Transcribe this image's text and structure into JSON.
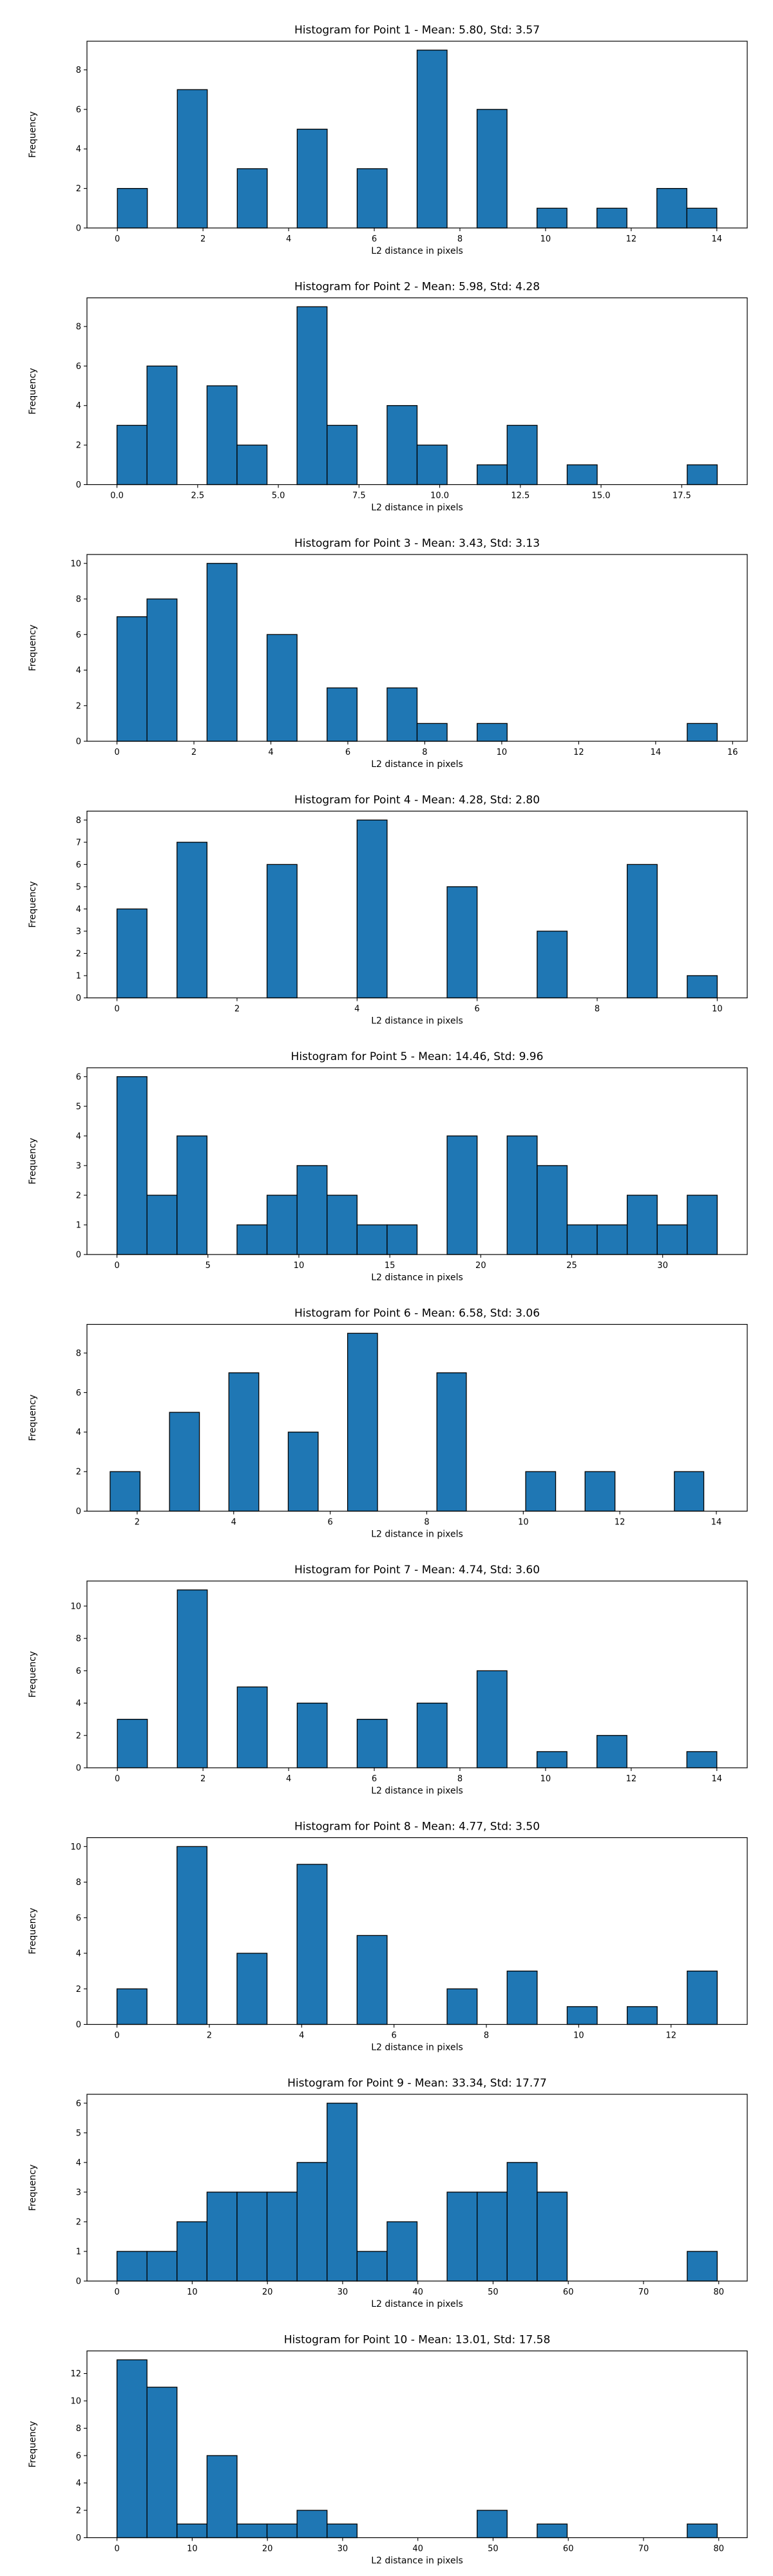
{
  "colors": {
    "bar_fill": "#1f77b4",
    "bar_edge": "#000000",
    "background": "#ffffff"
  },
  "chart_data": [
    {
      "type": "bar",
      "title": "Histogram for Point 1 - Mean: 5.80, Std: 3.57",
      "xlabel": "L2 distance in pixels",
      "ylabel": "Frequency",
      "grid": false,
      "xlim": [
        -0.71,
        14.71
      ],
      "ylim": [
        0,
        9.45
      ],
      "xticks": [
        0,
        2,
        4,
        6,
        8,
        10,
        12,
        14
      ],
      "xtick_labels": [
        "0",
        "2",
        "4",
        "6",
        "8",
        "10",
        "12",
        "14"
      ],
      "yticks": [
        0,
        2,
        4,
        6,
        8
      ],
      "ytick_labels": [
        "0",
        "2",
        "4",
        "6",
        "8"
      ],
      "bin_edges": [
        0,
        0.7,
        1.4,
        2.1,
        2.8,
        3.5,
        4.2,
        4.9,
        5.6,
        6.3,
        7.0,
        7.7,
        8.4,
        9.1,
        9.8,
        10.5,
        11.2,
        11.9,
        12.6,
        13.3,
        14.0
      ],
      "values": [
        2,
        0,
        7,
        0,
        3,
        0,
        5,
        0,
        3,
        0,
        9,
        0,
        6,
        0,
        1,
        0,
        1,
        0,
        2,
        1
      ]
    },
    {
      "type": "bar",
      "title": "Histogram for Point 2 - Mean: 5.98, Std: 4.28",
      "xlabel": "L2 distance in pixels",
      "ylabel": "Frequency",
      "grid": false,
      "xlim": [
        -0.93,
        19.53
      ],
      "ylim": [
        0,
        9.45
      ],
      "xticks": [
        0.0,
        2.5,
        5.0,
        7.5,
        10.0,
        12.5,
        15.0,
        17.5
      ],
      "xtick_labels": [
        "0.0",
        "2.5",
        "5.0",
        "7.5",
        "10.0",
        "12.5",
        "15.0",
        "17.5"
      ],
      "yticks": [
        0,
        2,
        4,
        6,
        8
      ],
      "ytick_labels": [
        "0",
        "2",
        "4",
        "6",
        "8"
      ],
      "bin_edges": [
        0,
        0.93,
        1.86,
        2.79,
        3.72,
        4.65,
        5.58,
        6.51,
        7.44,
        8.37,
        9.3,
        10.23,
        11.16,
        12.09,
        13.02,
        13.95,
        14.88,
        15.81,
        16.74,
        17.67,
        18.6
      ],
      "values": [
        3,
        6,
        0,
        5,
        2,
        0,
        9,
        3,
        0,
        4,
        2,
        0,
        1,
        3,
        0,
        1,
        0,
        0,
        0,
        1
      ]
    },
    {
      "type": "bar",
      "title": "Histogram for Point 3 - Mean: 3.43, Std: 3.13",
      "xlabel": "L2 distance in pixels",
      "ylabel": "Frequency",
      "grid": false,
      "xlim": [
        -0.78,
        16.38
      ],
      "ylim": [
        0,
        10.5
      ],
      "xticks": [
        0,
        2,
        4,
        6,
        8,
        10,
        12,
        14,
        16
      ],
      "xtick_labels": [
        "0",
        "2",
        "4",
        "6",
        "8",
        "10",
        "12",
        "14",
        "16"
      ],
      "yticks": [
        0,
        2,
        4,
        6,
        8,
        10
      ],
      "ytick_labels": [
        "0",
        "2",
        "4",
        "6",
        "8",
        "10"
      ],
      "bin_edges": [
        0,
        0.78,
        1.56,
        2.34,
        3.12,
        3.9,
        4.68,
        5.46,
        6.24,
        7.02,
        7.8,
        8.58,
        9.36,
        10.14,
        10.92,
        11.7,
        12.48,
        13.26,
        14.04,
        14.82,
        15.6
      ],
      "values": [
        7,
        8,
        0,
        10,
        0,
        6,
        0,
        3,
        0,
        3,
        1,
        0,
        1,
        0,
        0,
        0,
        0,
        0,
        0,
        1
      ]
    },
    {
      "type": "bar",
      "title": "Histogram for Point 4 - Mean: 4.28, Std: 2.80",
      "xlabel": "L2 distance in pixels",
      "ylabel": "Frequency",
      "grid": false,
      "xlim": [
        -0.5,
        10.5
      ],
      "ylim": [
        0,
        8.4
      ],
      "xticks": [
        0,
        2,
        4,
        6,
        8,
        10
      ],
      "xtick_labels": [
        "0",
        "2",
        "4",
        "6",
        "8",
        "10"
      ],
      "yticks": [
        0,
        1,
        2,
        3,
        4,
        5,
        6,
        7,
        8
      ],
      "ytick_labels": [
        "0",
        "1",
        "2",
        "3",
        "4",
        "5",
        "6",
        "7",
        "8"
      ],
      "bin_edges": [
        0,
        0.5,
        1.0,
        1.5,
        2.0,
        2.5,
        3.0,
        3.5,
        4.0,
        4.5,
        5.0,
        5.5,
        6.0,
        6.5,
        7.0,
        7.5,
        8.0,
        8.5,
        9.0,
        9.5,
        10.0
      ],
      "values": [
        4,
        0,
        7,
        0,
        0,
        6,
        0,
        0,
        8,
        0,
        0,
        5,
        0,
        0,
        3,
        0,
        0,
        6,
        0,
        1
      ]
    },
    {
      "type": "bar",
      "title": "Histogram for Point 5 - Mean: 14.46, Std: 9.96",
      "xlabel": "L2 distance in pixels",
      "ylabel": "Frequency",
      "grid": false,
      "xlim": [
        -1.65,
        34.65
      ],
      "ylim": [
        0,
        6.3
      ],
      "xticks": [
        0,
        5,
        10,
        15,
        20,
        25,
        30
      ],
      "xtick_labels": [
        "0",
        "5",
        "10",
        "15",
        "20",
        "25",
        "30"
      ],
      "yticks": [
        0,
        1,
        2,
        3,
        4,
        5,
        6
      ],
      "ytick_labels": [
        "0",
        "1",
        "2",
        "3",
        "4",
        "5",
        "6"
      ],
      "bin_edges": [
        0,
        1.65,
        3.3,
        4.95,
        6.6,
        8.25,
        9.9,
        11.55,
        13.2,
        14.85,
        16.5,
        18.15,
        19.8,
        21.45,
        23.1,
        24.75,
        26.4,
        28.05,
        29.7,
        31.35,
        33.0
      ],
      "values": [
        6,
        2,
        4,
        0,
        1,
        2,
        3,
        2,
        1,
        1,
        0,
        4,
        0,
        4,
        3,
        1,
        1,
        2,
        1,
        2
      ]
    },
    {
      "type": "bar",
      "title": "Histogram for Point 6 - Mean: 6.58, Std: 3.06",
      "xlabel": "L2 distance in pixels",
      "ylabel": "Frequency",
      "grid": false,
      "xlim": [
        0.96,
        14.64
      ],
      "ylim": [
        0,
        9.45
      ],
      "xticks": [
        2,
        4,
        6,
        8,
        10,
        12,
        14
      ],
      "xtick_labels": [
        "2",
        "4",
        "6",
        "8",
        "10",
        "12",
        "14"
      ],
      "yticks": [
        0,
        2,
        4,
        6,
        8
      ],
      "ytick_labels": [
        "0",
        "2",
        "4",
        "6",
        "8"
      ],
      "bin_edges": [
        1.44,
        2.06,
        2.67,
        3.29,
        3.9,
        4.52,
        5.13,
        5.75,
        6.36,
        6.98,
        7.59,
        8.21,
        8.82,
        9.44,
        10.05,
        10.67,
        11.28,
        11.9,
        12.51,
        13.13,
        13.74
      ],
      "values": [
        2,
        0,
        5,
        0,
        7,
        0,
        4,
        0,
        9,
        0,
        0,
        7,
        0,
        0,
        2,
        0,
        2,
        0,
        0,
        2
      ]
    },
    {
      "type": "bar",
      "title": "Histogram for Point 7 - Mean: 4.74, Std: 3.60",
      "xlabel": "L2 distance in pixels",
      "ylabel": "Frequency",
      "grid": false,
      "xlim": [
        -0.71,
        14.71
      ],
      "ylim": [
        0,
        11.55
      ],
      "xticks": [
        0,
        2,
        4,
        6,
        8,
        10,
        12,
        14
      ],
      "xtick_labels": [
        "0",
        "2",
        "4",
        "6",
        "8",
        "10",
        "12",
        "14"
      ],
      "yticks": [
        0,
        2,
        4,
        6,
        8,
        10
      ],
      "ytick_labels": [
        "0",
        "2",
        "4",
        "6",
        "8",
        "10"
      ],
      "bin_edges": [
        0,
        0.7,
        1.4,
        2.1,
        2.8,
        3.5,
        4.2,
        4.9,
        5.6,
        6.3,
        7.0,
        7.7,
        8.4,
        9.1,
        9.8,
        10.5,
        11.2,
        11.9,
        12.6,
        13.3,
        14.0
      ],
      "values": [
        3,
        0,
        11,
        0,
        5,
        0,
        4,
        0,
        3,
        0,
        4,
        0,
        6,
        0,
        1,
        0,
        2,
        0,
        0,
        1
      ]
    },
    {
      "type": "bar",
      "title": "Histogram for Point 8 - Mean: 4.77, Std: 3.50",
      "xlabel": "L2 distance in pixels",
      "ylabel": "Frequency",
      "grid": false,
      "xlim": [
        -0.65,
        13.65
      ],
      "ylim": [
        0,
        10.5
      ],
      "xticks": [
        0,
        2,
        4,
        6,
        8,
        10,
        12
      ],
      "xtick_labels": [
        "0",
        "2",
        "4",
        "6",
        "8",
        "10",
        "12"
      ],
      "yticks": [
        0,
        2,
        4,
        6,
        8,
        10
      ],
      "ytick_labels": [
        "0",
        "2",
        "4",
        "6",
        "8",
        "10"
      ],
      "bin_edges": [
        0,
        0.65,
        1.3,
        1.95,
        2.6,
        3.25,
        3.9,
        4.55,
        5.2,
        5.85,
        6.5,
        7.15,
        7.8,
        8.45,
        9.1,
        9.75,
        10.4,
        11.05,
        11.7,
        12.35,
        13.0
      ],
      "values": [
        2,
        0,
        10,
        0,
        4,
        0,
        9,
        0,
        5,
        0,
        0,
        2,
        0,
        3,
        0,
        1,
        0,
        1,
        0,
        3
      ]
    },
    {
      "type": "bar",
      "title": "Histogram for Point 9 - Mean: 33.34, Std: 17.77",
      "xlabel": "L2 distance in pixels",
      "ylabel": "Frequency",
      "grid": false,
      "xlim": [
        -3.99,
        83.79
      ],
      "ylim": [
        0,
        6.3
      ],
      "xticks": [
        0,
        10,
        20,
        30,
        40,
        50,
        60,
        70,
        80
      ],
      "xtick_labels": [
        "0",
        "10",
        "20",
        "30",
        "40",
        "50",
        "60",
        "70",
        "80"
      ],
      "yticks": [
        0,
        1,
        2,
        3,
        4,
        5,
        6
      ],
      "ytick_labels": [
        "0",
        "1",
        "2",
        "3",
        "4",
        "5",
        "6"
      ],
      "bin_edges": [
        0,
        3.99,
        7.98,
        11.97,
        15.96,
        19.95,
        23.94,
        27.93,
        31.92,
        35.91,
        39.9,
        43.89,
        47.88,
        51.87,
        55.86,
        59.85,
        63.84,
        67.83,
        71.82,
        75.81,
        79.8
      ],
      "values": [
        1,
        1,
        2,
        3,
        3,
        3,
        4,
        6,
        1,
        2,
        0,
        3,
        3,
        4,
        3,
        0,
        0,
        0,
        0,
        1
      ]
    },
    {
      "type": "bar",
      "title": "Histogram for Point 10 - Mean: 13.01, Std: 17.58",
      "xlabel": "L2 distance in pixels",
      "ylabel": "Frequency",
      "grid": false,
      "xlim": [
        -3.99,
        83.79
      ],
      "ylim": [
        0,
        13.65
      ],
      "xticks": [
        0,
        10,
        20,
        30,
        40,
        50,
        60,
        70,
        80
      ],
      "xtick_labels": [
        "0",
        "10",
        "20",
        "30",
        "40",
        "50",
        "60",
        "70",
        "80"
      ],
      "yticks": [
        0,
        2,
        4,
        6,
        8,
        10,
        12
      ],
      "ytick_labels": [
        "0",
        "2",
        "4",
        "6",
        "8",
        "10",
        "12"
      ],
      "bin_edges": [
        0,
        3.99,
        7.98,
        11.97,
        15.96,
        19.95,
        23.94,
        27.93,
        31.92,
        35.91,
        39.9,
        43.89,
        47.88,
        51.87,
        55.86,
        59.85,
        63.84,
        67.83,
        71.82,
        75.81,
        79.8
      ],
      "values": [
        13,
        11,
        1,
        6,
        1,
        1,
        2,
        1,
        0,
        0,
        0,
        0,
        2,
        0,
        1,
        0,
        0,
        0,
        0,
        1
      ]
    }
  ]
}
